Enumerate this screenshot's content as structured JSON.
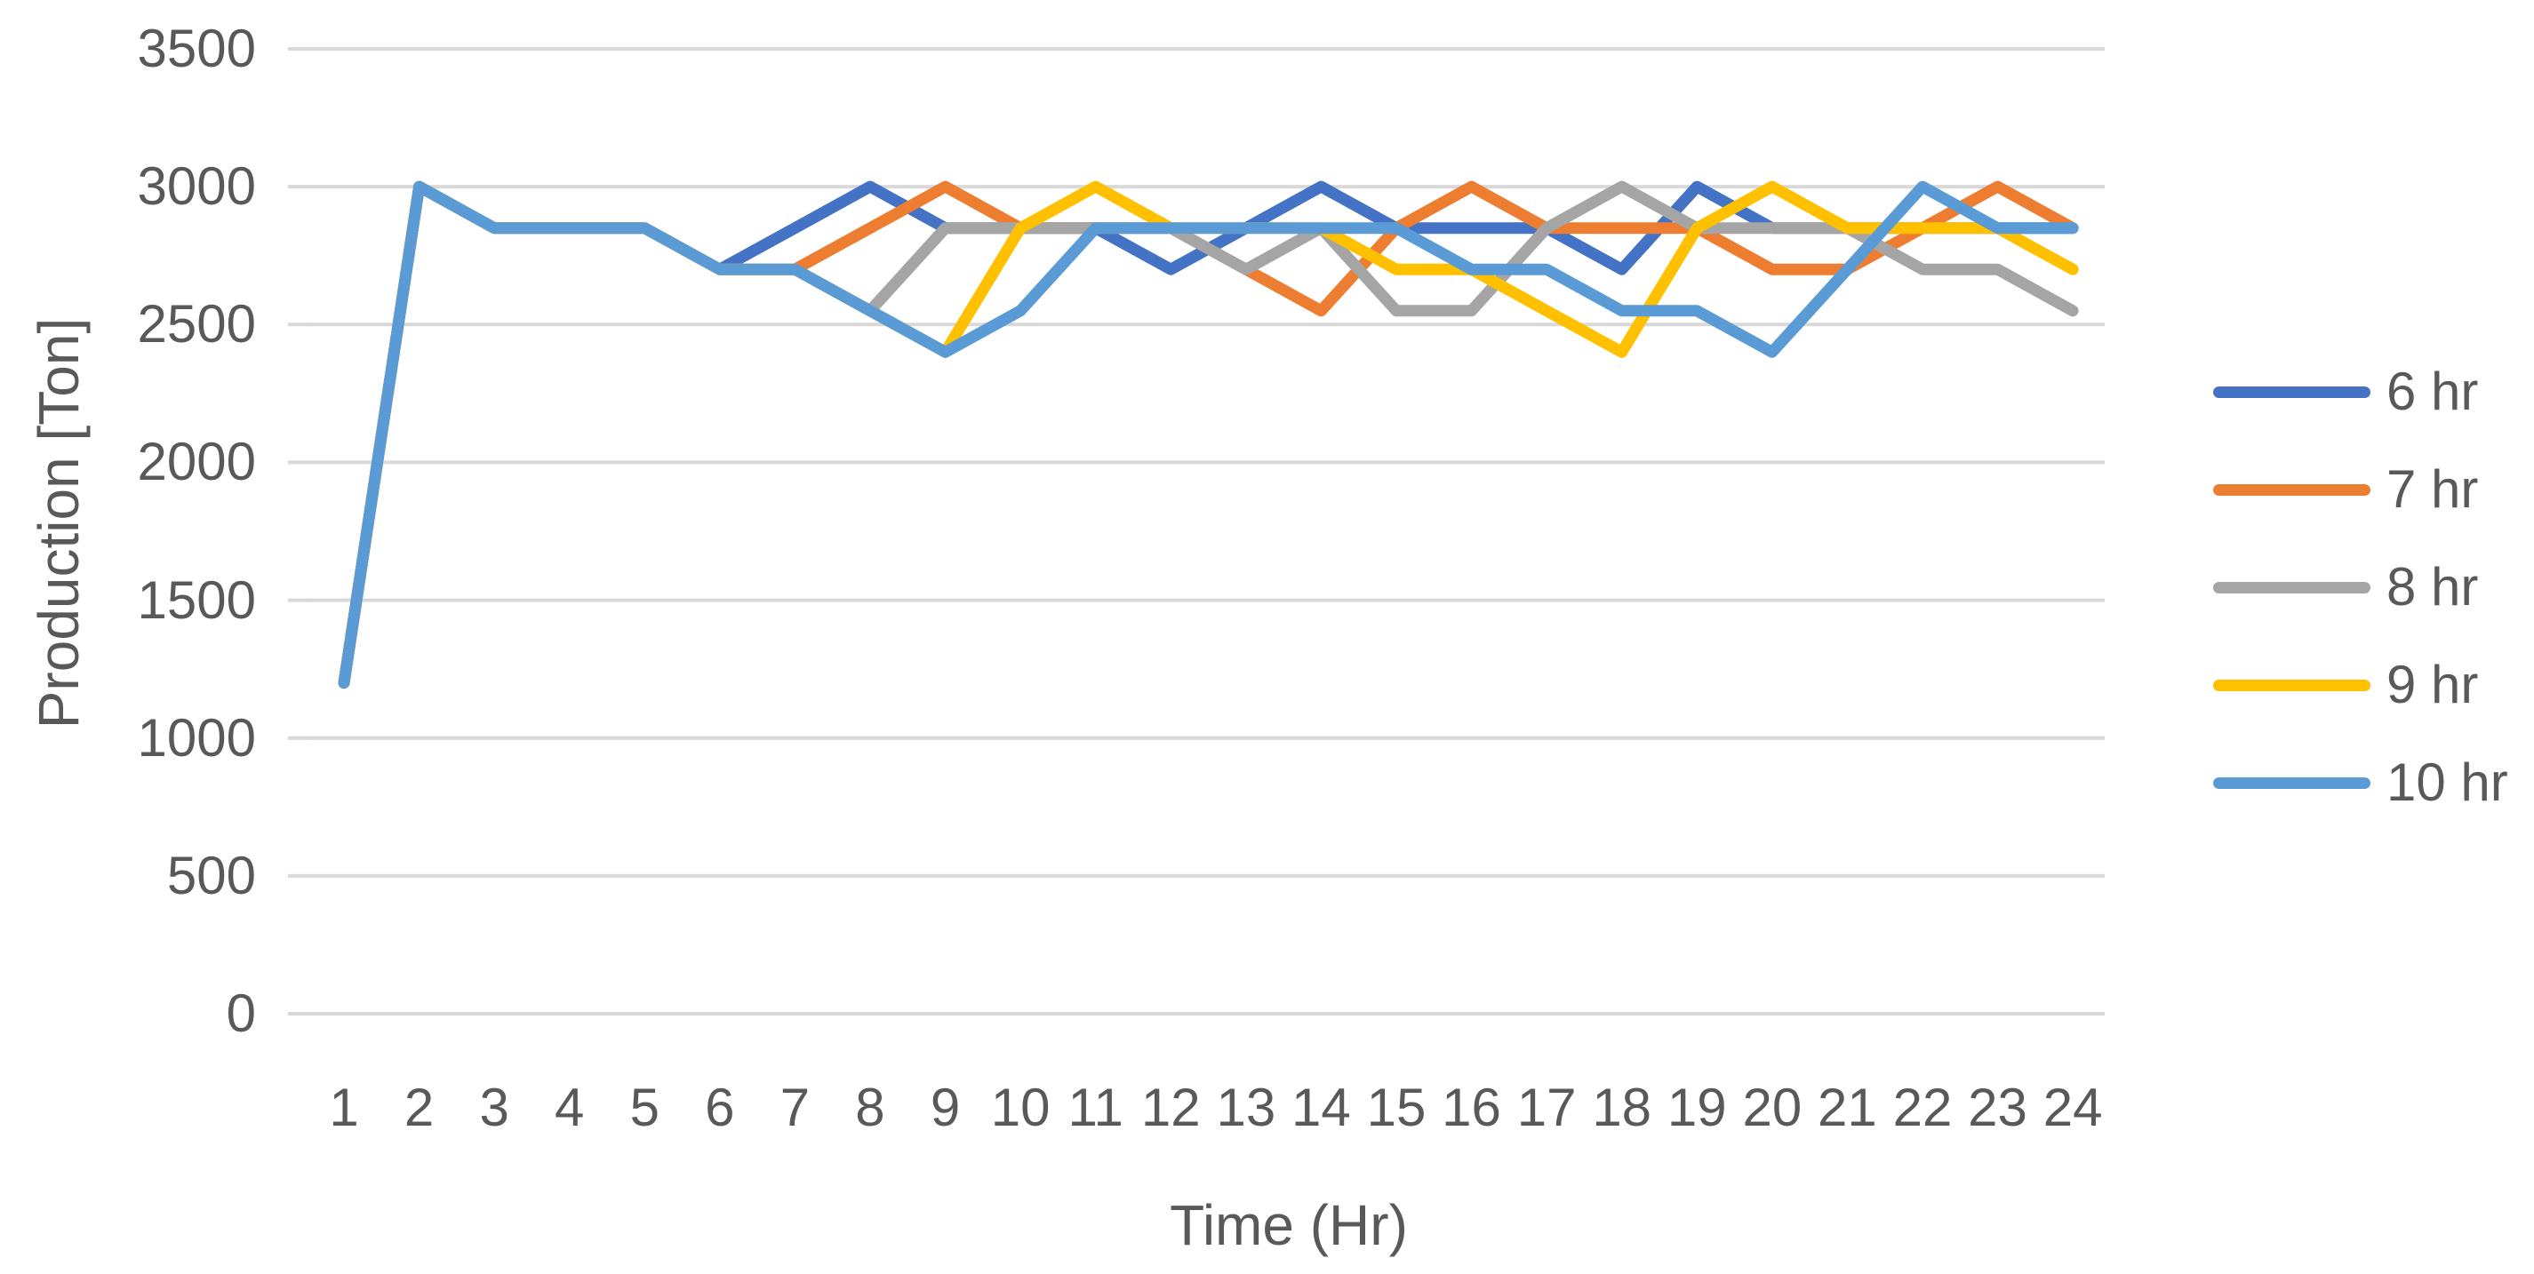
{
  "chart_data": {
    "type": "line",
    "title": "",
    "xlabel": "Time (Hr)",
    "ylabel": "Production [Ton]",
    "x": [
      1,
      2,
      3,
      4,
      5,
      6,
      7,
      8,
      9,
      10,
      11,
      12,
      13,
      14,
      15,
      16,
      17,
      18,
      19,
      20,
      21,
      22,
      23,
      24
    ],
    "ylim": [
      0,
      3500
    ],
    "yticks": [
      0,
      500,
      1000,
      1500,
      2000,
      2500,
      3000,
      3500
    ],
    "grid": true,
    "legend_position": "right",
    "series": [
      {
        "name": "6 hr",
        "color": "#4472C4",
        "values": [
          1200,
          3000,
          2850,
          2850,
          2850,
          2700,
          2850,
          3000,
          2850,
          2850,
          2850,
          2700,
          2850,
          3000,
          2850,
          2850,
          2850,
          2700,
          3000,
          2850,
          2850,
          2850,
          2850,
          2850
        ]
      },
      {
        "name": "7 hr",
        "color": "#ED7D31",
        "values": [
          1200,
          3000,
          2850,
          2850,
          2850,
          2700,
          2700,
          2850,
          3000,
          2850,
          2850,
          2850,
          2700,
          2550,
          2850,
          3000,
          2850,
          2850,
          2850,
          2700,
          2700,
          2850,
          3000,
          2850
        ]
      },
      {
        "name": "8 hr",
        "color": "#A5A5A5",
        "values": [
          1200,
          3000,
          2850,
          2850,
          2850,
          2700,
          2700,
          2550,
          2850,
          2850,
          2850,
          2850,
          2700,
          2850,
          2550,
          2550,
          2850,
          3000,
          2850,
          2850,
          2850,
          2700,
          2700,
          2550
        ]
      },
      {
        "name": "9 hr",
        "color": "#FFC000",
        "values": [
          1200,
          3000,
          2850,
          2850,
          2850,
          2700,
          2700,
          2550,
          2400,
          2850,
          3000,
          2850,
          2850,
          2850,
          2700,
          2700,
          2550,
          2400,
          2850,
          3000,
          2850,
          2850,
          2850,
          2700
        ]
      },
      {
        "name": "10 hr",
        "color": "#5B9BD5",
        "values": [
          1200,
          3000,
          2850,
          2850,
          2850,
          2700,
          2700,
          2550,
          2400,
          2550,
          2850,
          2850,
          2850,
          2850,
          2850,
          2700,
          2700,
          2550,
          2550,
          2400,
          2700,
          3000,
          2850,
          2850
        ]
      }
    ],
    "style": {
      "gridline_color": "#D9D9D9",
      "text_color": "#595959",
      "background_color": "#FFFFFF"
    }
  }
}
